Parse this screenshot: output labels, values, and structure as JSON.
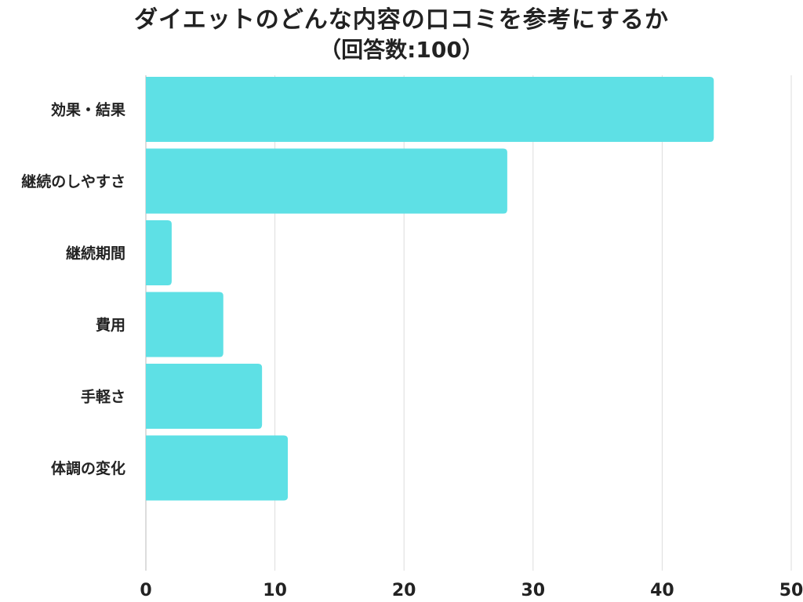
{
  "chart_data": {
    "type": "bar",
    "orientation": "horizontal",
    "title": "ダイエットのどんな内容の口コミを参考にするか",
    "subtitle": "（回答数:100）",
    "categories": [
      "効果・結果",
      "継続のしやすさ",
      "継続期間",
      "費用",
      "手軽さ",
      "体調の変化"
    ],
    "values": [
      44,
      28,
      2,
      6,
      9,
      11
    ],
    "xlim": [
      0,
      50
    ],
    "xticks": [
      "0",
      "10",
      "20",
      "30",
      "40",
      "50"
    ],
    "grid": true,
    "legend": "none",
    "bar_color": "#5ee0e5",
    "grid_color": "#dddddd"
  }
}
